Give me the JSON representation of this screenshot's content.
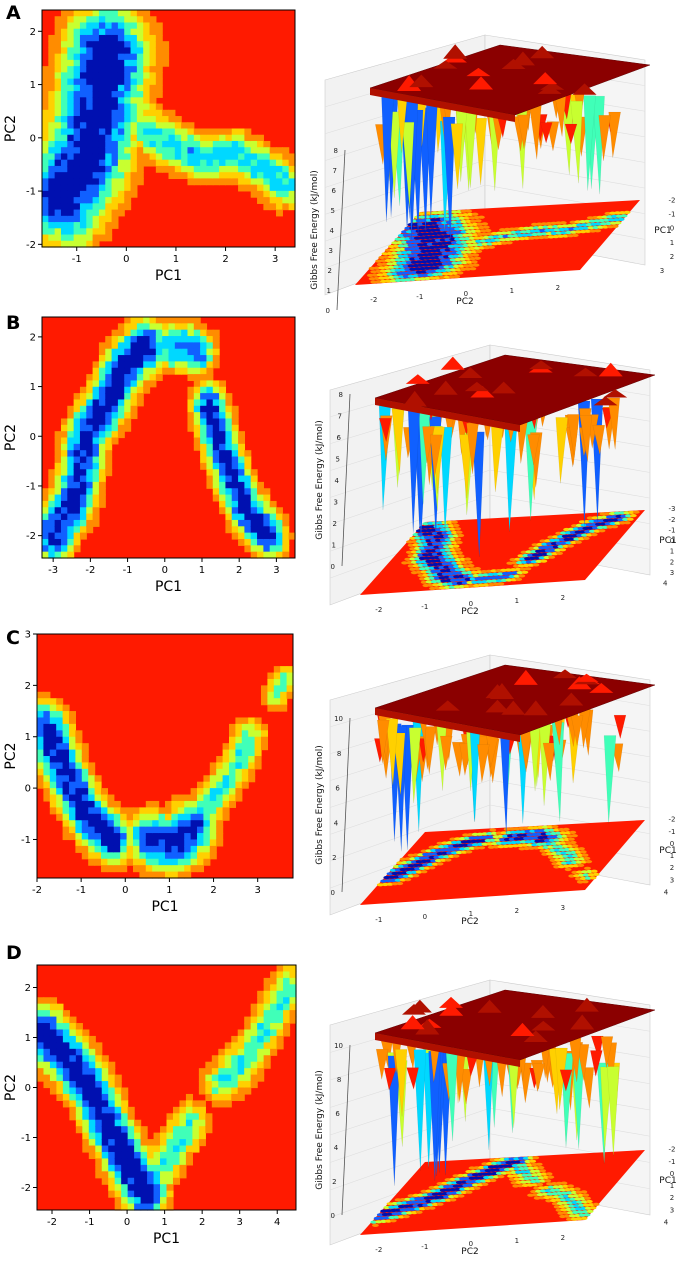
{
  "figure": {
    "colors": {
      "high": "#ff1a00",
      "orange": "#ff8c00",
      "yellow": "#ffd000",
      "yellowgreen": "#c8ff30",
      "aqua": "#40ffb8",
      "cyan": "#00d8ff",
      "blue": "#1060ff",
      "navy": "#0010b0",
      "plateau_top": "#8b0000",
      "plateau_side": "#b01000"
    }
  },
  "chart_data": [
    {
      "panel": "A",
      "type": "heatmap",
      "contour": {
        "xlabel": "PC1",
        "ylabel": "PC2",
        "xlim": [
          -1.7,
          3.4
        ],
        "ylim": [
          -2.05,
          2.4
        ],
        "xticks": [
          "-1",
          "0",
          "1",
          "2",
          "3"
        ],
        "xtick_values": [
          -1,
          0,
          1,
          2,
          3
        ],
        "yticks": [
          "-2",
          "-1",
          "0",
          "1",
          "2"
        ],
        "ytick_values": [
          -2,
          -1,
          0,
          1,
          2
        ],
        "basins": [
          {
            "x": [
              -1.25,
              -0.8,
              -0.55,
              -0.4
            ],
            "y": [
              -1.1,
              -0.4,
              0.6,
              1.6
            ],
            "width": 0.55,
            "depth": 1.0
          },
          {
            "x": [
              -0.4,
              0.1,
              0.5
            ],
            "y": [
              1.6,
              0.8,
              0.1
            ],
            "width": 0.25,
            "depth": 0.35
          },
          {
            "x": [
              0.5,
              1.0,
              1.6,
              2.2,
              2.8,
              3.2
            ],
            "y": [
              0.1,
              -0.2,
              -0.4,
              -0.3,
              -0.6,
              -0.9
            ],
            "width": 0.28,
            "depth": 0.58
          },
          {
            "x": [
              -1.3,
              -1.0
            ],
            "y": [
              -1.7,
              -1.9
            ],
            "width": 0.3,
            "depth": 0.4
          }
        ]
      },
      "surface": {
        "zlabel": "Gibbs Free Energy (kJ/mol)",
        "xlabel": "PC1",
        "ylabel": "PC2",
        "zticks": [
          "0",
          "1",
          "2",
          "3",
          "4",
          "5",
          "6",
          "7",
          "8"
        ],
        "pc1_ticks": [
          "-2",
          "-1",
          "0",
          "1",
          "2",
          "3"
        ],
        "pc2_ticks": [
          "-2",
          "-1",
          "0",
          "1",
          "2"
        ]
      }
    },
    {
      "panel": "B",
      "type": "heatmap",
      "contour": {
        "xlabel": "PC1",
        "ylabel": "PC2",
        "xlim": [
          -3.3,
          3.5
        ],
        "ylim": [
          -2.45,
          2.4
        ],
        "xticks": [
          "-3",
          "-2",
          "-1",
          "0",
          "1",
          "2",
          "3"
        ],
        "xtick_values": [
          -3,
          -2,
          -1,
          0,
          1,
          2,
          3
        ],
        "yticks": [
          "-2",
          "-1",
          "0",
          "1",
          "2"
        ],
        "ytick_values": [
          -2,
          -1,
          0,
          1,
          2
        ],
        "basins": [
          {
            "x": [
              -3.0,
              -2.4,
              -2.1,
              -1.5,
              -1.1,
              -0.5
            ],
            "y": [
              -2.0,
              -1.2,
              0.0,
              0.7,
              1.4,
              1.8
            ],
            "width": 0.35,
            "depth": 0.95
          },
          {
            "x": [
              0.2,
              0.6,
              0.9
            ],
            "y": [
              1.8,
              1.8,
              1.7
            ],
            "width": 0.3,
            "depth": 0.75
          },
          {
            "x": [
              1.2,
              1.5,
              1.9,
              2.2,
              2.8
            ],
            "y": [
              0.6,
              -0.2,
              -1.0,
              -1.5,
              -2.0
            ],
            "width": 0.3,
            "depth": 0.9
          }
        ]
      },
      "surface": {
        "zlabel": "Gibbs Free Energy (kJ/mol)",
        "xlabel": "PC1",
        "ylabel": "PC2",
        "zticks": [
          "0",
          "1",
          "2",
          "3",
          "4",
          "5",
          "6",
          "7",
          "8"
        ],
        "pc1_ticks": [
          "-3",
          "-2",
          "-1",
          "0",
          "1",
          "2",
          "3",
          "4"
        ],
        "pc2_ticks": [
          "-2",
          "-1",
          "0",
          "1",
          "2"
        ]
      }
    },
    {
      "panel": "C",
      "type": "heatmap",
      "contour": {
        "xlabel": "PC1",
        "ylabel": "PC2",
        "xlim": [
          -2.0,
          3.8
        ],
        "ylim": [
          -1.75,
          3.0
        ],
        "xticks": [
          "-2",
          "-1",
          "0",
          "1",
          "2",
          "3"
        ],
        "xtick_values": [
          -2,
          -1,
          0,
          1,
          2,
          3
        ],
        "yticks": [
          "-1",
          "0",
          "1",
          "2",
          "3"
        ],
        "ytick_values": [
          -1,
          0,
          1,
          2,
          3
        ],
        "basins": [
          {
            "x": [
              -1.8,
              -1.5,
              -1.2,
              -0.8,
              -0.3
            ],
            "y": [
              1.2,
              0.6,
              0.0,
              -0.6,
              -1.0
            ],
            "width": 0.3,
            "depth": 0.95
          },
          {
            "x": [
              0.6,
              1.1,
              1.5
            ],
            "y": [
              -1.0,
              -1.1,
              -0.8
            ],
            "width": 0.35,
            "depth": 0.9
          },
          {
            "x": [
              1.5,
              2.0,
              2.5,
              2.8
            ],
            "y": [
              -0.8,
              -0.2,
              0.4,
              1.0
            ],
            "width": 0.25,
            "depth": 0.5
          },
          {
            "x": [
              3.4,
              3.6
            ],
            "y": [
              1.8,
              2.1
            ],
            "width": 0.2,
            "depth": 0.4
          }
        ]
      },
      "surface": {
        "zlabel": "Gibbs Free Energy (kJ/mol)",
        "xlabel": "PC1",
        "ylabel": "PC2",
        "zticks": [
          "0",
          "2",
          "4",
          "6",
          "8",
          "10"
        ],
        "pc1_ticks": [
          "-2",
          "-1",
          "0",
          "1",
          "2",
          "3",
          "4"
        ],
        "pc2_ticks": [
          "-1",
          "0",
          "1",
          "2",
          "3"
        ]
      }
    },
    {
      "panel": "D",
      "type": "heatmap",
      "contour": {
        "xlabel": "PC1",
        "ylabel": "PC2",
        "xlim": [
          -2.4,
          4.5
        ],
        "ylim": [
          -2.45,
          2.45
        ],
        "xticks": [
          "-2",
          "-1",
          "0",
          "1",
          "2",
          "3",
          "4"
        ],
        "xtick_values": [
          -2,
          -1,
          0,
          1,
          2,
          3,
          4
        ],
        "yticks": [
          "-2",
          "-1",
          "0",
          "1",
          "2"
        ],
        "ytick_values": [
          -2,
          -1,
          0,
          1,
          2
        ],
        "basins": [
          {
            "x": [
              -2.2,
              -1.5,
              -1.0,
              -0.5,
              0.0,
              0.5
            ],
            "y": [
              1.1,
              0.5,
              0.0,
              -0.8,
              -1.5,
              -2.1
            ],
            "width": 0.35,
            "depth": 1.0
          },
          {
            "x": [
              0.5,
              1.1,
              1.7
            ],
            "y": [
              -2.1,
              -1.4,
              -0.7
            ],
            "width": 0.3,
            "depth": 0.5
          },
          {
            "x": [
              2.5,
              3.1,
              3.7,
              4.3
            ],
            "y": [
              0.1,
              0.5,
              1.2,
              2.0
            ],
            "width": 0.3,
            "depth": 0.5
          }
        ]
      },
      "surface": {
        "zlabel": "Gibbs Free Energy (kJ/mol)",
        "xlabel": "PC1",
        "ylabel": "PC2",
        "zticks": [
          "0",
          "2",
          "4",
          "6",
          "8",
          "10"
        ],
        "pc1_ticks": [
          "-2",
          "-1",
          "0",
          "1",
          "2",
          "3",
          "4"
        ],
        "pc2_ticks": [
          "-2",
          "-1",
          "0",
          "1",
          "2"
        ]
      }
    }
  ]
}
